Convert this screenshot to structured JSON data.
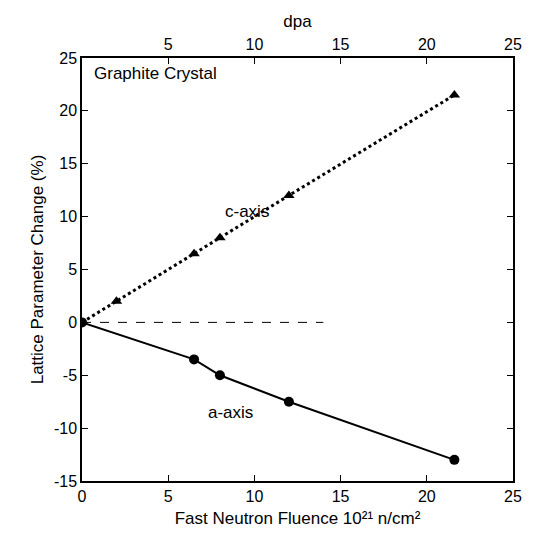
{
  "chart_data": {
    "type": "line",
    "annotations": [
      {
        "text": "Graphite Crystal",
        "x": 0.6,
        "y": 23.5
      },
      {
        "text": "c-axis",
        "x": 8.2,
        "y": 10.5
      },
      {
        "text": "a-axis",
        "x": 7.2,
        "y": -8.5
      }
    ],
    "x_title": "Fast Neutron Fluence 10²¹ n/cm²",
    "x2_title": "dpa",
    "y_title": "Lattice Parameter Change (%)",
    "series": [
      {
        "name": "c-axis",
        "color": "#000000",
        "marker": "triangle-up",
        "line_style": "dot",
        "x": [
          0,
          2,
          6.5,
          8,
          12,
          21.6
        ],
        "values": [
          0,
          2,
          6.5,
          8,
          12,
          21.5
        ]
      },
      {
        "name": "a-axis",
        "color": "#000000",
        "marker": "circle",
        "line_style": "solid",
        "x": [
          0,
          6.5,
          8,
          12,
          21.6
        ],
        "values": [
          0,
          -3.5,
          -5,
          -7.5,
          -13
        ]
      }
    ],
    "reference_line": {
      "y": 0,
      "x": [
        0,
        14
      ],
      "line_style": "dash",
      "color": "#000000"
    },
    "xlim": [
      0,
      25
    ],
    "xticks": [
      0,
      5,
      10,
      15,
      20,
      25
    ],
    "x2lim": [
      0,
      25
    ],
    "x2ticks": [
      5,
      10,
      15,
      20,
      25
    ],
    "ylim": [
      -15,
      25
    ],
    "yticks": [
      -15,
      -10,
      -5,
      0,
      5,
      10,
      15,
      20,
      25
    ],
    "grid": false
  }
}
